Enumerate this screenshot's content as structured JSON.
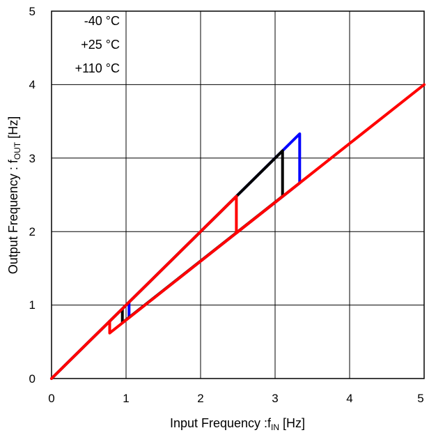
{
  "chart_data": {
    "type": "line",
    "xlabel": {
      "main": "Input Frequency :f",
      "sub": "IN",
      "unit": " [Hz]"
    },
    "ylabel": {
      "main": "Output  Frequency  : f",
      "sub": "OUT",
      "unit": " [Hz]"
    },
    "xlim": [
      0,
      5
    ],
    "ylim": [
      0,
      5
    ],
    "x_ticks": [
      "0",
      "1",
      "2",
      "3",
      "4",
      "5"
    ],
    "y_ticks": [
      "0",
      "1",
      "2",
      "3",
      "4",
      "5"
    ],
    "grid": true,
    "legend_position": "top-left",
    "legend": [
      "-40 °C",
      "+25 °C",
      "+110 °C"
    ],
    "series": [
      {
        "color": "#0000ff",
        "points": [
          [
            0,
            0
          ],
          [
            1.04,
            1.04
          ],
          [
            1.04,
            0.83
          ],
          [
            3.33,
            2.66
          ],
          [
            3.33,
            3.33
          ],
          [
            1.04,
            1.04
          ]
        ]
      },
      {
        "color": "#000000",
        "points": [
          [
            0,
            0
          ],
          [
            0.95,
            0.95
          ],
          [
            0.95,
            0.76
          ],
          [
            3.1,
            2.48
          ],
          [
            3.1,
            3.1
          ],
          [
            0.95,
            0.95
          ]
        ]
      },
      {
        "color": "#ff0000",
        "points": [
          [
            0,
            0
          ],
          [
            0.78,
            0.78
          ],
          [
            0.78,
            0.62
          ],
          [
            5,
            4
          ],
          [
            2.48,
            1.98
          ],
          [
            2.48,
            2.48
          ],
          [
            0.78,
            0.78
          ]
        ]
      }
    ]
  }
}
